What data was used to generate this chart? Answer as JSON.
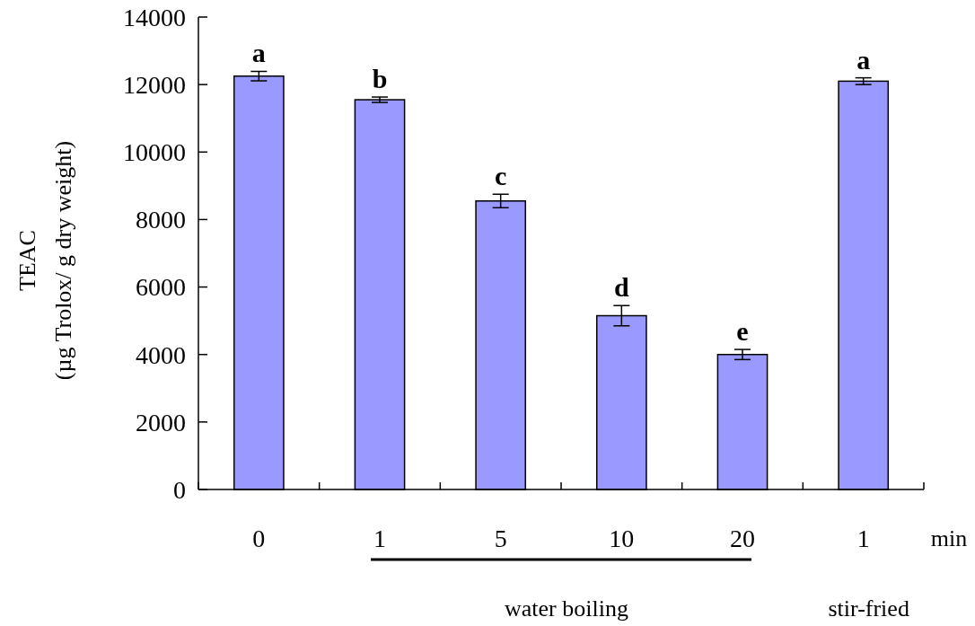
{
  "chart_data": {
    "type": "bar",
    "categories": [
      "0",
      "1",
      "5",
      "10",
      "20",
      "1"
    ],
    "values": [
      12250,
      11550,
      8550,
      5150,
      4000,
      12100
    ],
    "errors": [
      140,
      80,
      200,
      300,
      150,
      100
    ],
    "value_labels": [
      "a",
      "b",
      "c",
      "d",
      "e",
      "a"
    ],
    "color": "#9999ff",
    "ylim": [
      0,
      14000
    ],
    "yticks": [
      0,
      2000,
      4000,
      6000,
      8000,
      10000,
      12000,
      14000
    ],
    "ylabel": "TEAC\n(µg Trolox/ g dry weight)",
    "xlabel": "min",
    "annotations": [
      "water boiling",
      "stir-fried"
    ]
  }
}
